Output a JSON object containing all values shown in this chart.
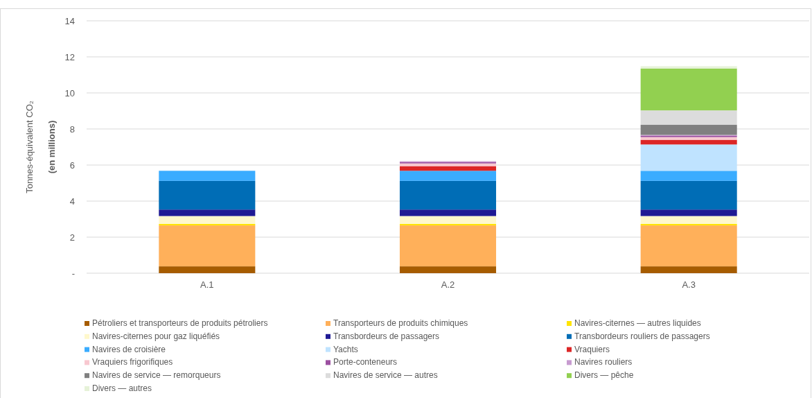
{
  "chart_data": {
    "type": "bar",
    "stacked": true,
    "ylabel": "Tonnes-équivalent CO₂ (en millions)",
    "categories": [
      "A.1",
      "A.2",
      "A.3"
    ],
    "ylim": [
      0,
      14
    ],
    "yticks": [
      {
        "value": 0,
        "label": "-"
      },
      2,
      4,
      6,
      8,
      10,
      12,
      14
    ],
    "grid": "y",
    "legend": "bottom",
    "series": [
      {
        "name": "Pétroliers et transporteurs de produits pétroliers",
        "color": "#a65c00",
        "values": [
          0.38,
          0.38,
          0.38
        ]
      },
      {
        "name": "Transporteurs de produits chimiques",
        "color": "#ffb05a",
        "values": [
          2.27,
          2.27,
          2.27
        ]
      },
      {
        "name": "Navires-citernes — autres liquides",
        "color": "#ffe400",
        "values": [
          0.08,
          0.08,
          0.08
        ]
      },
      {
        "name": "Navires-citernes pour gaz liquéfiés",
        "color": "#fff8cc",
        "values": [
          0.44,
          0.44,
          0.44
        ]
      },
      {
        "name": "Transbordeurs de passagers",
        "color": "#1f1a94",
        "values": [
          0.36,
          0.36,
          0.36
        ]
      },
      {
        "name": "Transbordeurs rouliers de passagers",
        "color": "#006db6",
        "values": [
          1.59,
          1.59,
          1.59
        ]
      },
      {
        "name": "Navires de croisière",
        "color": "#3aacff",
        "values": [
          0.56,
          0.56,
          0.56
        ]
      },
      {
        "name": "Yachts",
        "color": "#bfe3ff",
        "values": [
          null,
          null,
          1.46
        ]
      },
      {
        "name": "Vraquiers",
        "color": "#dc2626",
        "values": [
          null,
          0.26,
          0.26
        ]
      },
      {
        "name": "Vraquiers frigorifiques",
        "color": "#f8c8d0",
        "values": [
          null,
          0.15,
          0.15
        ]
      },
      {
        "name": "Porte-conteneurs",
        "color": "#9b4fa0",
        "values": [
          null,
          0.08,
          0.08
        ]
      },
      {
        "name": "Navires rouliers",
        "color": "#c79bd0",
        "values": [
          null,
          0.04,
          0.04
        ]
      },
      {
        "name": "Navires de service — remorqueurs",
        "color": "#808080",
        "values": [
          null,
          null,
          0.56
        ]
      },
      {
        "name": "Navires de service — autres",
        "color": "#dcdcdc",
        "values": [
          null,
          null,
          0.8
        ]
      },
      {
        "name": "Divers — pêche",
        "color": "#92d050",
        "values": [
          null,
          null,
          2.32
        ]
      },
      {
        "name": "Divers — autres",
        "color": "#e6f2d8",
        "values": [
          null,
          null,
          0.13
        ]
      }
    ]
  }
}
